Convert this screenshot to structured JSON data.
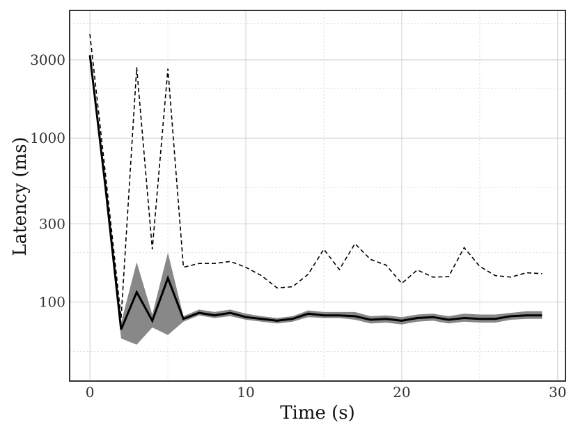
{
  "chart_data": {
    "type": "line",
    "xlabel": "Time (s)",
    "ylabel": "Latency (ms)",
    "xlim": [
      -1.3,
      30.5
    ],
    "ylim": [
      33,
      6000
    ],
    "yscale": "log",
    "grid": true,
    "xticks": [
      0,
      10,
      20,
      30
    ],
    "yticks": [
      100,
      300,
      1000,
      3000
    ],
    "x": [
      0,
      1,
      2,
      3,
      4,
      5,
      6,
      7,
      8,
      9,
      10,
      11,
      12,
      13,
      14,
      15,
      16,
      17,
      18,
      19,
      20,
      21,
      22,
      23,
      24,
      25,
      26,
      27,
      28,
      29
    ],
    "series": [
      {
        "style": "solid",
        "color": "#000000",
        "values": [
          3200,
          500,
          68,
          115,
          77,
          140,
          79,
          86,
          83,
          86,
          81,
          79,
          77,
          79,
          85,
          83,
          83,
          82,
          78,
          79,
          77,
          80,
          81,
          78,
          80,
          79,
          79,
          82,
          83,
          83
        ],
        "band_lower": [
          3100,
          480,
          60,
          55,
          70,
          63,
          76,
          83,
          80,
          82,
          78,
          76,
          74,
          76,
          81,
          80,
          80,
          78,
          74,
          75,
          73,
          76,
          77,
          74,
          76,
          75,
          75,
          78,
          79,
          79
        ],
        "band_upper": [
          3300,
          520,
          75,
          175,
          84,
          200,
          82,
          90,
          87,
          90,
          85,
          82,
          80,
          82,
          89,
          87,
          87,
          87,
          82,
          83,
          81,
          84,
          85,
          82,
          85,
          84,
          84,
          86,
          88,
          88
        ],
        "band_color": "#888888"
      },
      {
        "style": "dashed",
        "color": "#000000",
        "values": [
          4300,
          600,
          80,
          2700,
          210,
          2650,
          163,
          172,
          172,
          177,
          163,
          145,
          122,
          124,
          148,
          210,
          158,
          227,
          182,
          168,
          130,
          157,
          142,
          143,
          215,
          165,
          145,
          142,
          151,
          149
        ]
      }
    ]
  }
}
